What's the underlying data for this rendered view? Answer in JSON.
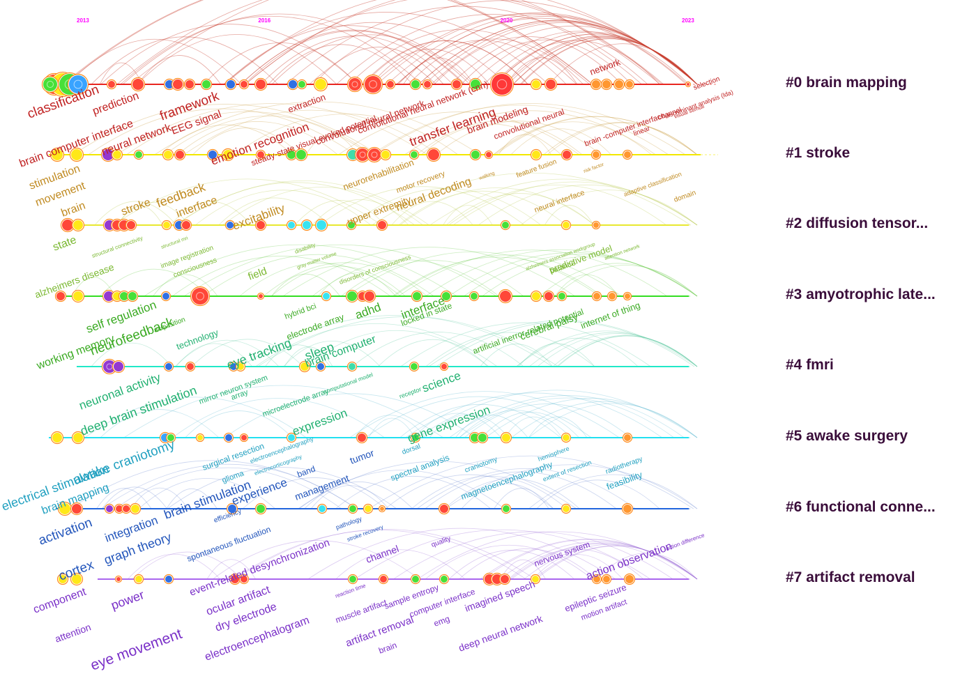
{
  "timeline": {
    "years": [
      {
        "label": "2013",
        "year": 2013
      },
      {
        "label": "2016",
        "year": 2016
      },
      {
        "label": "2020",
        "year": 2020
      },
      {
        "label": "2023",
        "year": 2023
      }
    ],
    "year_range": [
      2013,
      2023
    ]
  },
  "clusters": [
    {
      "id": "#0",
      "label": "#0 brain mapping",
      "color": "#e8251f"
    },
    {
      "id": "#1",
      "label": "#1 stroke",
      "color": "#f2e800"
    },
    {
      "id": "#2",
      "label": "#2 diffusion tensor...",
      "color": "#e8e830"
    },
    {
      "id": "#3",
      "label": "#3 amyotrophic late...",
      "color": "#33dd22"
    },
    {
      "id": "#4",
      "label": "#4 fmri",
      "color": "#22e8c8"
    },
    {
      "id": "#5",
      "label": "#5 awake surgery",
      "color": "#22e0f0"
    },
    {
      "id": "#6",
      "label": "#6 functional conne...",
      "color": "#2266dd"
    },
    {
      "id": "#7",
      "label": "#7 artifact removal",
      "color": "#aa66ee"
    }
  ],
  "keywords": [
    {
      "text": "classification",
      "cluster": 0,
      "color": "#c02020"
    },
    {
      "text": "prediction",
      "cluster": 0,
      "color": "#c02020"
    },
    {
      "text": "brain computer interface",
      "cluster": 0,
      "color": "#c02020"
    },
    {
      "text": "framework",
      "cluster": 0,
      "color": "#c02020"
    },
    {
      "text": "neural network",
      "cluster": 0,
      "color": "#c02020"
    },
    {
      "text": "EEG signal",
      "cluster": 0,
      "color": "#c02020"
    },
    {
      "text": "extraction",
      "cluster": 0,
      "color": "#c02020"
    },
    {
      "text": "emotion recognition",
      "cluster": 0,
      "color": "#c02020"
    },
    {
      "text": "steady-state visual evoked potential",
      "cluster": 0,
      "color": "#c02020"
    },
    {
      "text": "convolutional neural network",
      "cluster": 0,
      "color": "#c02020"
    },
    {
      "text": "convolutional neural network (cnn)",
      "cluster": 0,
      "color": "#c02020"
    },
    {
      "text": "transfer learning",
      "cluster": 0,
      "color": "#c02020"
    },
    {
      "text": "brain modeling",
      "cluster": 0,
      "color": "#c02020"
    },
    {
      "text": "convolutional neural",
      "cluster": 0,
      "color": "#c02020"
    },
    {
      "text": "network",
      "cluster": 0,
      "color": "#c02020"
    },
    {
      "text": "brain -computer interface",
      "cluster": 0,
      "color": "#c02020"
    },
    {
      "text": "channel",
      "cluster": 0,
      "color": "#c02020"
    },
    {
      "text": "selection",
      "cluster": 0,
      "color": "#c02020"
    },
    {
      "text": "discriminant analysis (lda)",
      "cluster": 0,
      "color": "#c02020"
    },
    {
      "text": "visual stimuli",
      "cluster": 0,
      "color": "#c02020"
    },
    {
      "text": "linear",
      "cluster": 0,
      "color": "#c02020"
    },
    {
      "text": "stimulation",
      "cluster": 1,
      "color": "#c08a20"
    },
    {
      "text": "movement",
      "cluster": 1,
      "color": "#c08a20"
    },
    {
      "text": "brain",
      "cluster": 1,
      "color": "#c08a20"
    },
    {
      "text": "stroke",
      "cluster": 1,
      "color": "#c08a20"
    },
    {
      "text": "feedback",
      "cluster": 1,
      "color": "#c08a20"
    },
    {
      "text": "interface",
      "cluster": 1,
      "color": "#c08a20"
    },
    {
      "text": "excitability",
      "cluster": 1,
      "color": "#c08a20"
    },
    {
      "text": "neurorehabilitation",
      "cluster": 1,
      "color": "#c08a20"
    },
    {
      "text": "motor recovery",
      "cluster": 1,
      "color": "#c08a20"
    },
    {
      "text": "upper extremity",
      "cluster": 1,
      "color": "#c08a20"
    },
    {
      "text": "neural decoding",
      "cluster": 1,
      "color": "#c08a20"
    },
    {
      "text": "walking",
      "cluster": 1,
      "color": "#c08a20"
    },
    {
      "text": "feature fusion",
      "cluster": 1,
      "color": "#c08a20"
    },
    {
      "text": "risk factor",
      "cluster": 1,
      "color": "#c08a20"
    },
    {
      "text": "neural interface",
      "cluster": 1,
      "color": "#c08a20"
    },
    {
      "text": "adaptive classification",
      "cluster": 1,
      "color": "#c08a20"
    },
    {
      "text": "domain",
      "cluster": 1,
      "color": "#c08a20"
    },
    {
      "text": "state",
      "cluster": 2,
      "color": "#7ab830"
    },
    {
      "text": "structural connectivity",
      "cluster": 2,
      "color": "#7ab830"
    },
    {
      "text": "structural mri",
      "cluster": 2,
      "color": "#7ab830"
    },
    {
      "text": "alzheimers disease",
      "cluster": 2,
      "color": "#7ab830"
    },
    {
      "text": "image registration",
      "cluster": 2,
      "color": "#7ab830"
    },
    {
      "text": "consciousness",
      "cluster": 2,
      "color": "#7ab830"
    },
    {
      "text": "disability",
      "cluster": 2,
      "color": "#7ab830"
    },
    {
      "text": "gray matter volume",
      "cluster": 2,
      "color": "#7ab830"
    },
    {
      "text": "field",
      "cluster": 2,
      "color": "#7ab830"
    },
    {
      "text": "disorders of consciousness",
      "cluster": 2,
      "color": "#7ab830"
    },
    {
      "text": "alzheimers association workgroup",
      "cluster": 2,
      "color": "#7ab830"
    },
    {
      "text": "predictive model",
      "cluster": 2,
      "color": "#7ab830"
    },
    {
      "text": "balance",
      "cluster": 2,
      "color": "#7ab830"
    },
    {
      "text": "attention network",
      "cluster": 2,
      "color": "#7ab830"
    },
    {
      "text": "self regulation",
      "cluster": 3,
      "color": "#3aaa22"
    },
    {
      "text": "working memory",
      "cluster": 3,
      "color": "#3aaa22"
    },
    {
      "text": "neurofeedback",
      "cluster": 3,
      "color": "#3aaa22"
    },
    {
      "text": "acquisition",
      "cluster": 3,
      "color": "#3aaa22"
    },
    {
      "text": "hybrid bci",
      "cluster": 3,
      "color": "#3aaa22"
    },
    {
      "text": "electrode array",
      "cluster": 3,
      "color": "#3aaa22"
    },
    {
      "text": "adhd",
      "cluster": 3,
      "color": "#3aaa22"
    },
    {
      "text": "interface",
      "cluster": 3,
      "color": "#3aaa22"
    },
    {
      "text": "locked in state",
      "cluster": 3,
      "color": "#3aaa22"
    },
    {
      "text": "artificial inerror-related potential",
      "cluster": 3,
      "color": "#3aaa22"
    },
    {
      "text": "cerebral palsy",
      "cluster": 3,
      "color": "#3aaa22"
    },
    {
      "text": "internet of thing",
      "cluster": 3,
      "color": "#3aaa22"
    },
    {
      "text": "neuronal activity",
      "cluster": 4,
      "color": "#20b070"
    },
    {
      "text": "technology",
      "cluster": 4,
      "color": "#20b070"
    },
    {
      "text": "eye tracking",
      "cluster": 4,
      "color": "#20b070"
    },
    {
      "text": "sleep",
      "cluster": 4,
      "color": "#20b070"
    },
    {
      "text": "brain computer",
      "cluster": 4,
      "color": "#20b070"
    },
    {
      "text": "mirror neuron system",
      "cluster": 4,
      "color": "#20b070"
    },
    {
      "text": "computational model",
      "cluster": 4,
      "color": "#20b070"
    },
    {
      "text": "science",
      "cluster": 4,
      "color": "#20b070"
    },
    {
      "text": "deep brain stimulation",
      "cluster": 4,
      "color": "#20b070"
    },
    {
      "text": "array",
      "cluster": 4,
      "color": "#20b070"
    },
    {
      "text": "microelectrode array",
      "cluster": 4,
      "color": "#20b070"
    },
    {
      "text": "receptor",
      "cluster": 4,
      "color": "#20b070"
    },
    {
      "text": "expression",
      "cluster": 4,
      "color": "#20b070"
    },
    {
      "text": "gene expression",
      "cluster": 4,
      "color": "#20b070"
    },
    {
      "text": "electrical stimulation",
      "cluster": 5,
      "color": "#20a0c0"
    },
    {
      "text": "awake craniotomy",
      "cluster": 5,
      "color": "#20a0c0"
    },
    {
      "text": "brain mapping",
      "cluster": 5,
      "color": "#20a0c0"
    },
    {
      "text": "surgical resection",
      "cluster": 5,
      "color": "#20a0c0"
    },
    {
      "text": "electroencephalography",
      "cluster": 5,
      "color": "#20a0c0"
    },
    {
      "text": "glioma",
      "cluster": 5,
      "color": "#20a0c0"
    },
    {
      "text": "electrocorticography",
      "cluster": 5,
      "color": "#20a0c0"
    },
    {
      "text": "dorsal",
      "cluster": 5,
      "color": "#20a0c0"
    },
    {
      "text": "spectral analysis",
      "cluster": 5,
      "color": "#20a0c0"
    },
    {
      "text": "craniotomy",
      "cluster": 5,
      "color": "#20a0c0"
    },
    {
      "text": "hemisphere",
      "cluster": 5,
      "color": "#20a0c0"
    },
    {
      "text": "magnetoencephalography",
      "cluster": 5,
      "color": "#20a0c0"
    },
    {
      "text": "extent of resection",
      "cluster": 5,
      "color": "#20a0c0"
    },
    {
      "text": "radiotherapy",
      "cluster": 5,
      "color": "#20a0c0"
    },
    {
      "text": "feasibility",
      "cluster": 5,
      "color": "#20a0c0"
    },
    {
      "text": "activation",
      "cluster": 6,
      "color": "#2255bb"
    },
    {
      "text": "integration",
      "cluster": 6,
      "color": "#2255bb"
    },
    {
      "text": "brain stimulation",
      "cluster": 6,
      "color": "#2255bb"
    },
    {
      "text": "graph theory",
      "cluster": 6,
      "color": "#2255bb"
    },
    {
      "text": "cortex",
      "cluster": 6,
      "color": "#2255bb"
    },
    {
      "text": "experience",
      "cluster": 6,
      "color": "#2255bb"
    },
    {
      "text": "band",
      "cluster": 6,
      "color": "#2255bb"
    },
    {
      "text": "management",
      "cluster": 6,
      "color": "#2255bb"
    },
    {
      "text": "tumor",
      "cluster": 6,
      "color": "#2255bb"
    },
    {
      "text": "efficiency",
      "cluster": 6,
      "color": "#2255bb"
    },
    {
      "text": "spontaneous fluctuation",
      "cluster": 6,
      "color": "#2255bb"
    },
    {
      "text": "pathology",
      "cluster": 6,
      "color": "#2255bb"
    },
    {
      "text": "stroke recovery",
      "cluster": 6,
      "color": "#2255bb"
    },
    {
      "text": "component",
      "cluster": 7,
      "color": "#7a30c8"
    },
    {
      "text": "attention",
      "cluster": 7,
      "color": "#7a30c8"
    },
    {
      "text": "power",
      "cluster": 7,
      "color": "#7a30c8"
    },
    {
      "text": "eye movement",
      "cluster": 7,
      "color": "#7a30c8"
    },
    {
      "text": "event-related desynchronization",
      "cluster": 7,
      "color": "#7a30c8"
    },
    {
      "text": "ocular artifact",
      "cluster": 7,
      "color": "#7a30c8"
    },
    {
      "text": "dry electrode",
      "cluster": 7,
      "color": "#7a30c8"
    },
    {
      "text": "electroencephalogram",
      "cluster": 7,
      "color": "#7a30c8"
    },
    {
      "text": "channel",
      "cluster": 7,
      "color": "#7a30c8"
    },
    {
      "text": "quality",
      "cluster": 7,
      "color": "#7a30c8"
    },
    {
      "text": "reaction time",
      "cluster": 7,
      "color": "#7a30c8"
    },
    {
      "text": "muscle artifact",
      "cluster": 7,
      "color": "#7a30c8"
    },
    {
      "text": "sample entropy",
      "cluster": 7,
      "color": "#7a30c8"
    },
    {
      "text": "computer interface",
      "cluster": 7,
      "color": "#7a30c8"
    },
    {
      "text": "artifact removal",
      "cluster": 7,
      "color": "#7a30c8"
    },
    {
      "text": "brain",
      "cluster": 7,
      "color": "#7a30c8"
    },
    {
      "text": "emg",
      "cluster": 7,
      "color": "#7a30c8"
    },
    {
      "text": "imagined speech",
      "cluster": 7,
      "color": "#7a30c8"
    },
    {
      "text": "nervous system",
      "cluster": 7,
      "color": "#7a30c8"
    },
    {
      "text": "action observation",
      "cluster": 7,
      "color": "#7a30c8"
    },
    {
      "text": "deep neural network",
      "cluster": 7,
      "color": "#7a30c8"
    },
    {
      "text": "epileptic seizure",
      "cluster": 7,
      "color": "#7a30c8"
    },
    {
      "text": "motion artifact",
      "cluster": 7,
      "color": "#7a30c8"
    },
    {
      "text": "action difference",
      "cluster": 7,
      "color": "#7a30c8"
    }
  ]
}
